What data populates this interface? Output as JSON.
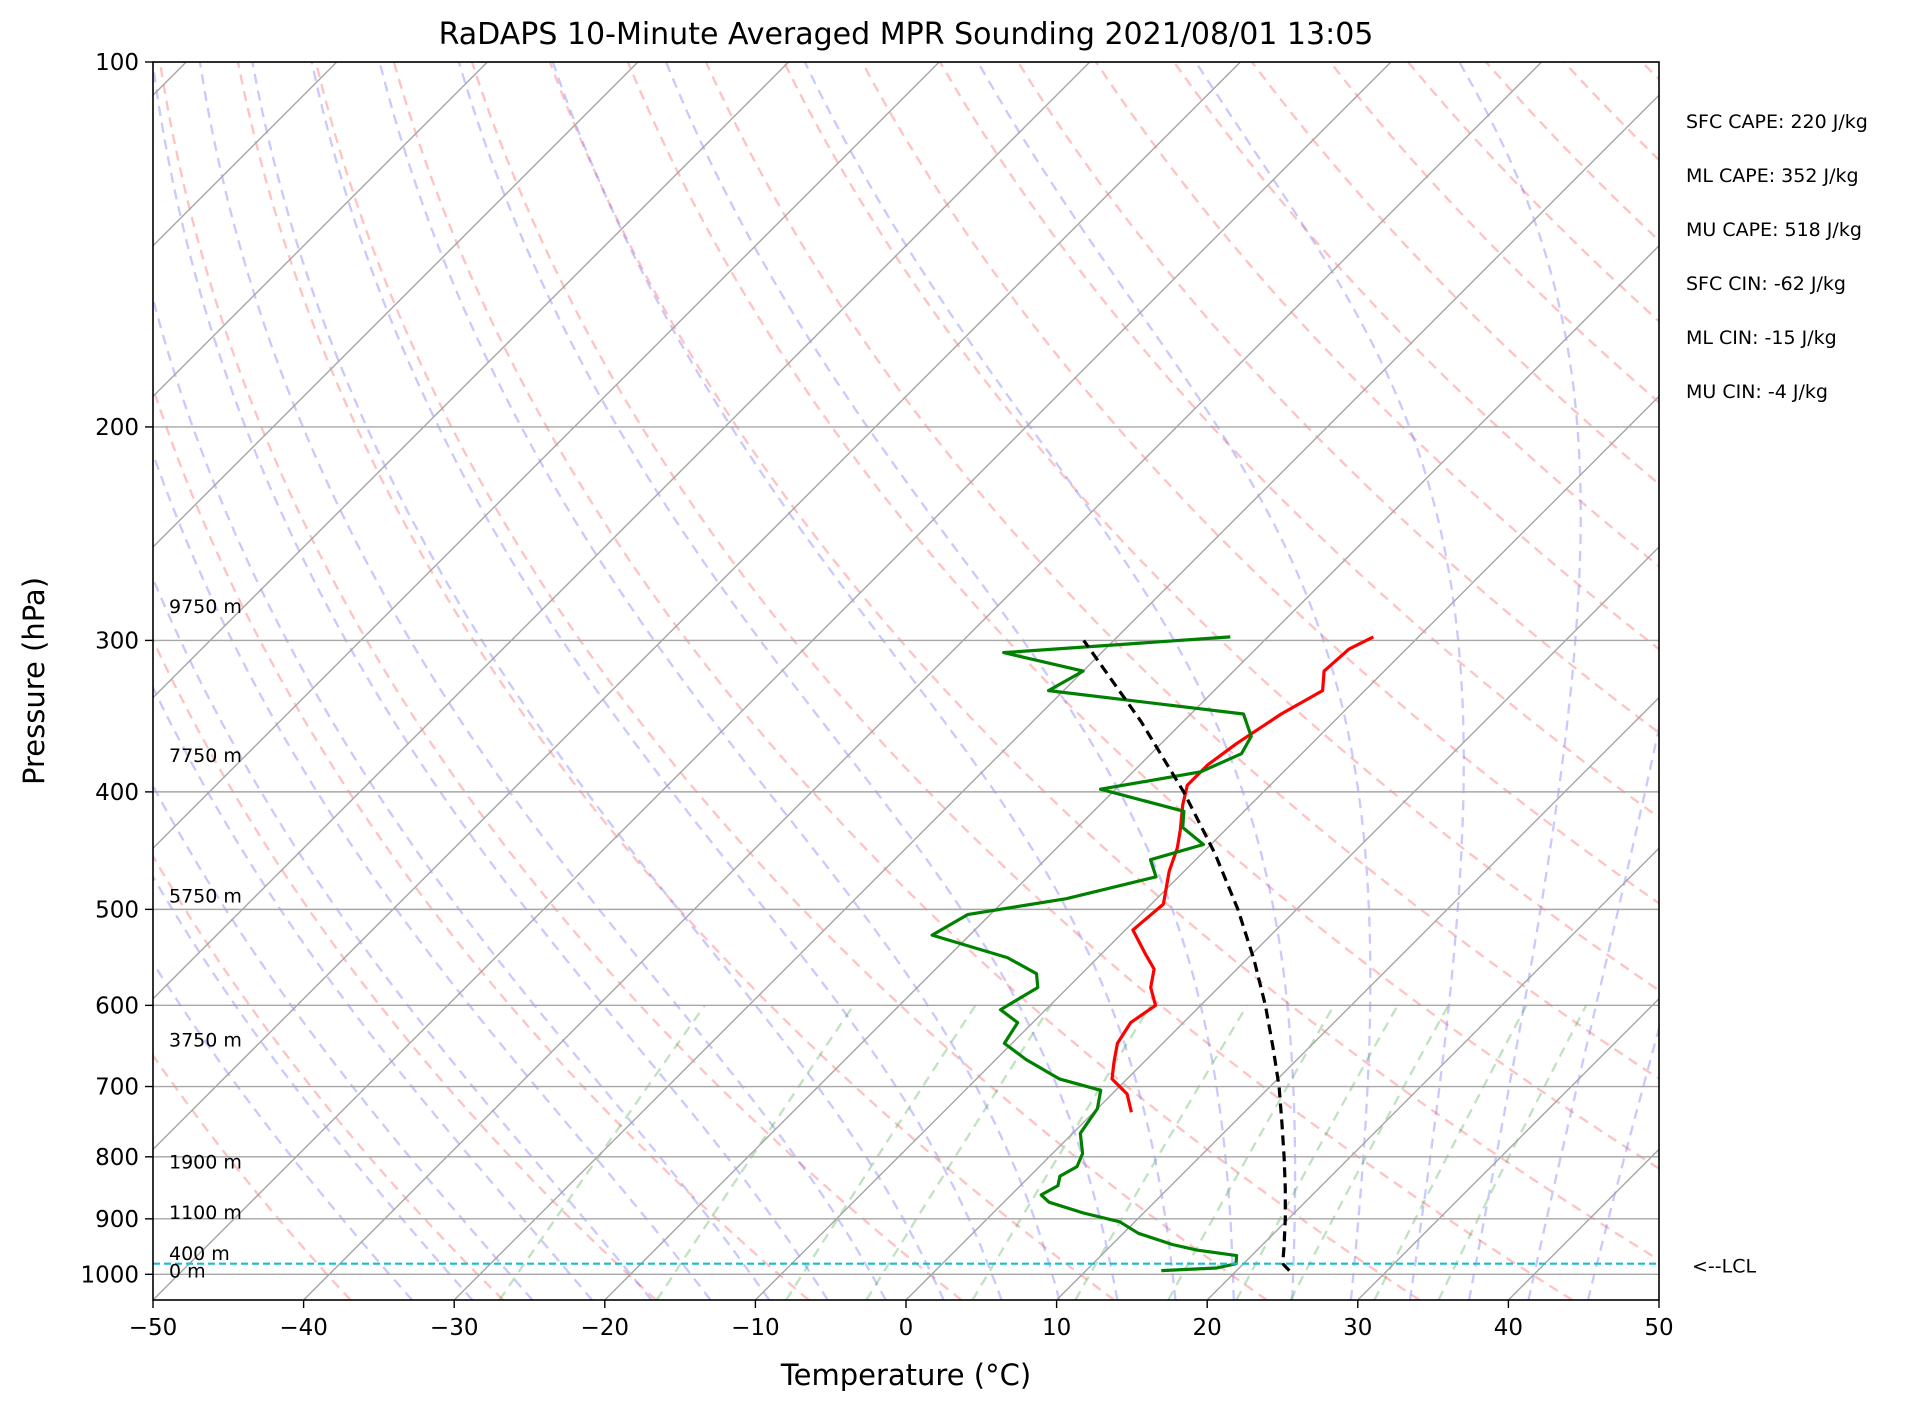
{
  "chart_data": {
    "type": "line",
    "title": "RaDAPS 10-Minute Averaged MPR Sounding 2021/08/01 13:05",
    "xlabel": "Temperature (°C)",
    "ylabel": "Pressure (hPa)",
    "xlim": [
      -50,
      50
    ],
    "ylim": [
      1050,
      100
    ],
    "y_scale": "log",
    "skew": 45,
    "x_ticks": [
      -50,
      -40,
      -30,
      -20,
      -10,
      0,
      10,
      20,
      30,
      40,
      50
    ],
    "x_tick_labels": [
      "−50",
      "−40",
      "−30",
      "−20",
      "−10",
      "0",
      "10",
      "20",
      "30",
      "40",
      "50"
    ],
    "y_ticks": [
      100,
      200,
      300,
      400,
      500,
      600,
      700,
      800,
      900,
      1000
    ],
    "y_tick_labels": [
      "100",
      "200",
      "300",
      "400",
      "500",
      "600",
      "700",
      "800",
      "900",
      "1000"
    ],
    "grid": true,
    "height_labels": [
      {
        "p": 993,
        "label": "0 m"
      },
      {
        "p": 960,
        "label": "400 m"
      },
      {
        "p": 888,
        "label": "1100 m"
      },
      {
        "p": 807,
        "label": "1900 m"
      },
      {
        "p": 640,
        "label": "3750 m"
      },
      {
        "p": 487,
        "label": "5750 m"
      },
      {
        "p": 373,
        "label": "7750 m"
      },
      {
        "p": 281,
        "label": "9750 m"
      }
    ],
    "lcl": {
      "p": 980,
      "label": "<--LCL"
    },
    "series": [
      {
        "role": "temperature",
        "color": "#ff0000",
        "points": [
          {
            "p": 298,
            "t": -13.0
          },
          {
            "p": 305,
            "t": -13.8
          },
          {
            "p": 318,
            "t": -14.0
          },
          {
            "p": 330,
            "t": -12.8
          },
          {
            "p": 345,
            "t": -14.0
          },
          {
            "p": 365,
            "t": -15.0
          },
          {
            "p": 380,
            "t": -15.5
          },
          {
            "p": 395,
            "t": -15.5
          },
          {
            "p": 410,
            "t": -14.5
          },
          {
            "p": 430,
            "t": -13.0
          },
          {
            "p": 445,
            "t": -12.0
          },
          {
            "p": 465,
            "t": -11.0
          },
          {
            "p": 495,
            "t": -9.2
          },
          {
            "p": 520,
            "t": -9.5
          },
          {
            "p": 545,
            "t": -7.0
          },
          {
            "p": 560,
            "t": -5.5
          },
          {
            "p": 580,
            "t": -4.5
          },
          {
            "p": 600,
            "t": -3.0
          },
          {
            "p": 620,
            "t": -3.5
          },
          {
            "p": 645,
            "t": -3.0
          },
          {
            "p": 668,
            "t": -2.0
          },
          {
            "p": 690,
            "t": -1.0
          },
          {
            "p": 710,
            "t": 1.0
          },
          {
            "p": 735,
            "t": 2.5
          }
        ]
      },
      {
        "role": "dewpoint",
        "color": "#008000",
        "points": [
          {
            "p": 298,
            "t": -22.5
          },
          {
            "p": 307,
            "t": -36.5
          },
          {
            "p": 318,
            "t": -30.0
          },
          {
            "p": 330,
            "t": -31.0
          },
          {
            "p": 345,
            "t": -16.5
          },
          {
            "p": 360,
            "t": -14.5
          },
          {
            "p": 372,
            "t": -14.0
          },
          {
            "p": 385,
            "t": -15.5
          },
          {
            "p": 398,
            "t": -21.0
          },
          {
            "p": 415,
            "t": -14.0
          },
          {
            "p": 428,
            "t": -13.0
          },
          {
            "p": 442,
            "t": -10.5
          },
          {
            "p": 455,
            "t": -13.0
          },
          {
            "p": 470,
            "t": -11.5
          },
          {
            "p": 490,
            "t": -16.0
          },
          {
            "p": 505,
            "t": -21.5
          },
          {
            "p": 525,
            "t": -22.5
          },
          {
            "p": 548,
            "t": -16.0
          },
          {
            "p": 565,
            "t": -13.0
          },
          {
            "p": 580,
            "t": -12.0
          },
          {
            "p": 605,
            "t": -13.0
          },
          {
            "p": 620,
            "t": -11.0
          },
          {
            "p": 645,
            "t": -10.5
          },
          {
            "p": 665,
            "t": -8.0
          },
          {
            "p": 690,
            "t": -4.5
          },
          {
            "p": 705,
            "t": -1.0
          },
          {
            "p": 730,
            "t": 0.0
          },
          {
            "p": 765,
            "t": 0.5
          },
          {
            "p": 795,
            "t": 2.0
          },
          {
            "p": 815,
            "t": 2.5
          },
          {
            "p": 830,
            "t": 2.0
          },
          {
            "p": 845,
            "t": 2.5
          },
          {
            "p": 860,
            "t": 2.0
          },
          {
            "p": 872,
            "t": 3.0
          },
          {
            "p": 890,
            "t": 6.0
          },
          {
            "p": 905,
            "t": 9.0
          },
          {
            "p": 925,
            "t": 11.0
          },
          {
            "p": 945,
            "t": 14.0
          },
          {
            "p": 955,
            "t": 16.0
          },
          {
            "p": 965,
            "t": 19.0
          },
          {
            "p": 980,
            "t": 19.5
          },
          {
            "p": 988,
            "t": 18.5
          },
          {
            "p": 993,
            "t": 15.0
          }
        ]
      },
      {
        "role": "parcel",
        "color": "#000000",
        "dashed": true,
        "points": [
          {
            "p": 993,
            "t": 23.5
          },
          {
            "p": 980,
            "t": 22.6
          },
          {
            "p": 950,
            "t": 21.6
          },
          {
            "p": 900,
            "t": 19.8
          },
          {
            "p": 850,
            "t": 17.8
          },
          {
            "p": 800,
            "t": 15.6
          },
          {
            "p": 750,
            "t": 13.2
          },
          {
            "p": 700,
            "t": 10.6
          },
          {
            "p": 650,
            "t": 7.6
          },
          {
            "p": 600,
            "t": 4.3
          },
          {
            "p": 550,
            "t": 0.5
          },
          {
            "p": 500,
            "t": -3.9
          },
          {
            "p": 450,
            "t": -9.1
          },
          {
            "p": 400,
            "t": -15.3
          },
          {
            "p": 350,
            "t": -22.8
          },
          {
            "p": 300,
            "t": -32.0
          }
        ]
      }
    ]
  },
  "stats": [
    "SFC CAPE: 220 J/kg",
    "ML CAPE: 352 J/kg",
    "MU CAPE: 518 J/kg",
    "SFC CIN: -62 J/kg",
    "ML CIN: -15 J/kg",
    "MU CIN: -4 J/kg"
  ]
}
